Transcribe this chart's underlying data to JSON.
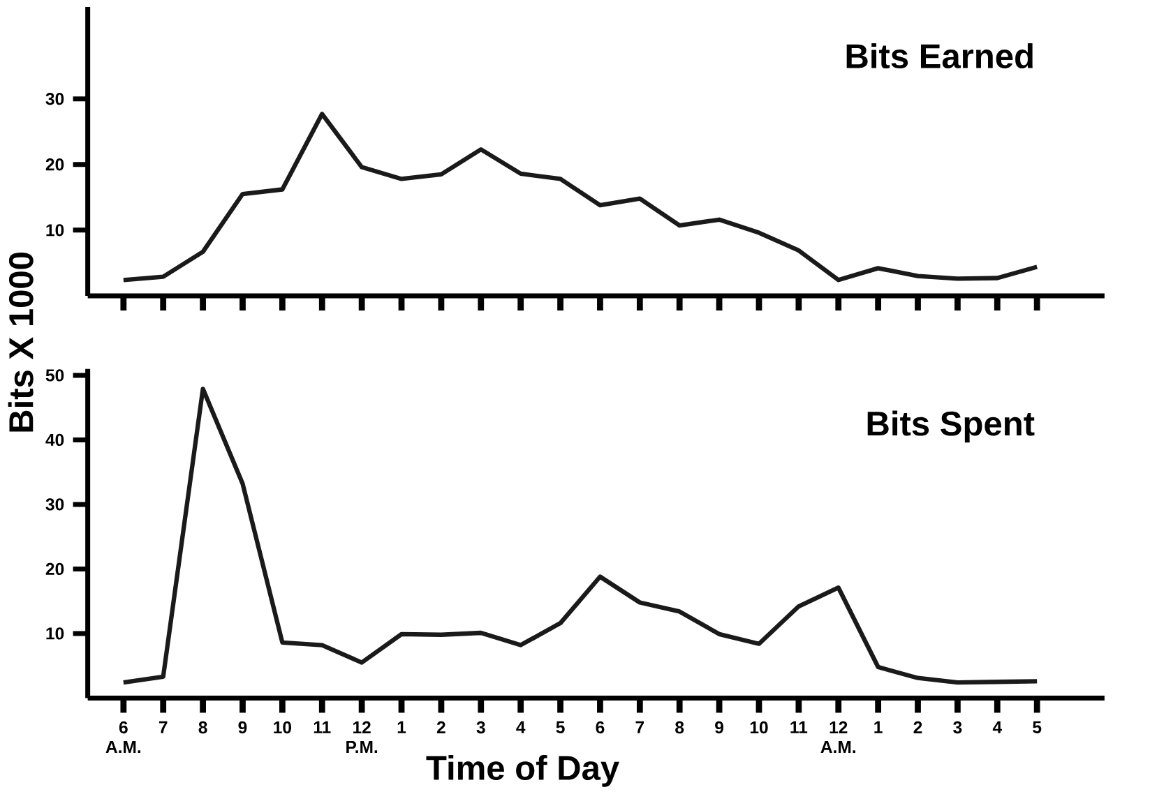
{
  "chart_data": [
    {
      "type": "line",
      "title": "Bits Earned",
      "categories": [
        null,
        null,
        null,
        null,
        null,
        null,
        null,
        null,
        null,
        null,
        null,
        null,
        null,
        null,
        null,
        null,
        null,
        null,
        null,
        null,
        null,
        null,
        null,
        null
      ],
      "tick_labels": "y",
      "ylim": [
        0,
        44
      ],
      "yticks": [
        10,
        20,
        30
      ],
      "marker": "none",
      "line_style": "solid",
      "grid": false,
      "series": [
        {
          "color": "#1a1a1a",
          "values": [
            2.4,
            2.9,
            6.7,
            15.5,
            16.2,
            27.7,
            19.6,
            17.8,
            18.5,
            22.3,
            18.6,
            17.8,
            13.8,
            14.8,
            10.7,
            11.6,
            9.6,
            6.9,
            2.4,
            4.2,
            3.0,
            2.6,
            2.7,
            4.4
          ]
        }
      ]
    },
    {
      "type": "line",
      "title": "Bits Spent",
      "xlabel": "Time of Day",
      "ylabel": "Bits X 1000",
      "categories": [
        "6 A.M.",
        "7",
        "8",
        "9",
        "10",
        "11",
        "12 P.M.",
        "1",
        "2",
        "3",
        "4",
        "5",
        "6",
        "7",
        "8",
        "9",
        "10",
        "11",
        "12 A.M.",
        "1",
        "2",
        "3",
        "4",
        "5"
      ],
      "ylim": [
        0,
        51
      ],
      "yticks": [
        10,
        20,
        30,
        40,
        50
      ],
      "marker": "none",
      "line_style": "solid",
      "grid": false,
      "series": [
        {
          "color": "#1a1a1a",
          "values": [
            2.4,
            3.3,
            47.9,
            33.2,
            8.6,
            8.2,
            5.5,
            9.9,
            9.8,
            10.1,
            8.2,
            11.6,
            18.8,
            14.8,
            13.4,
            9.9,
            8.4,
            14.2,
            17.1,
            4.8,
            3.1,
            2.4,
            2.5,
            2.6
          ]
        }
      ]
    }
  ]
}
